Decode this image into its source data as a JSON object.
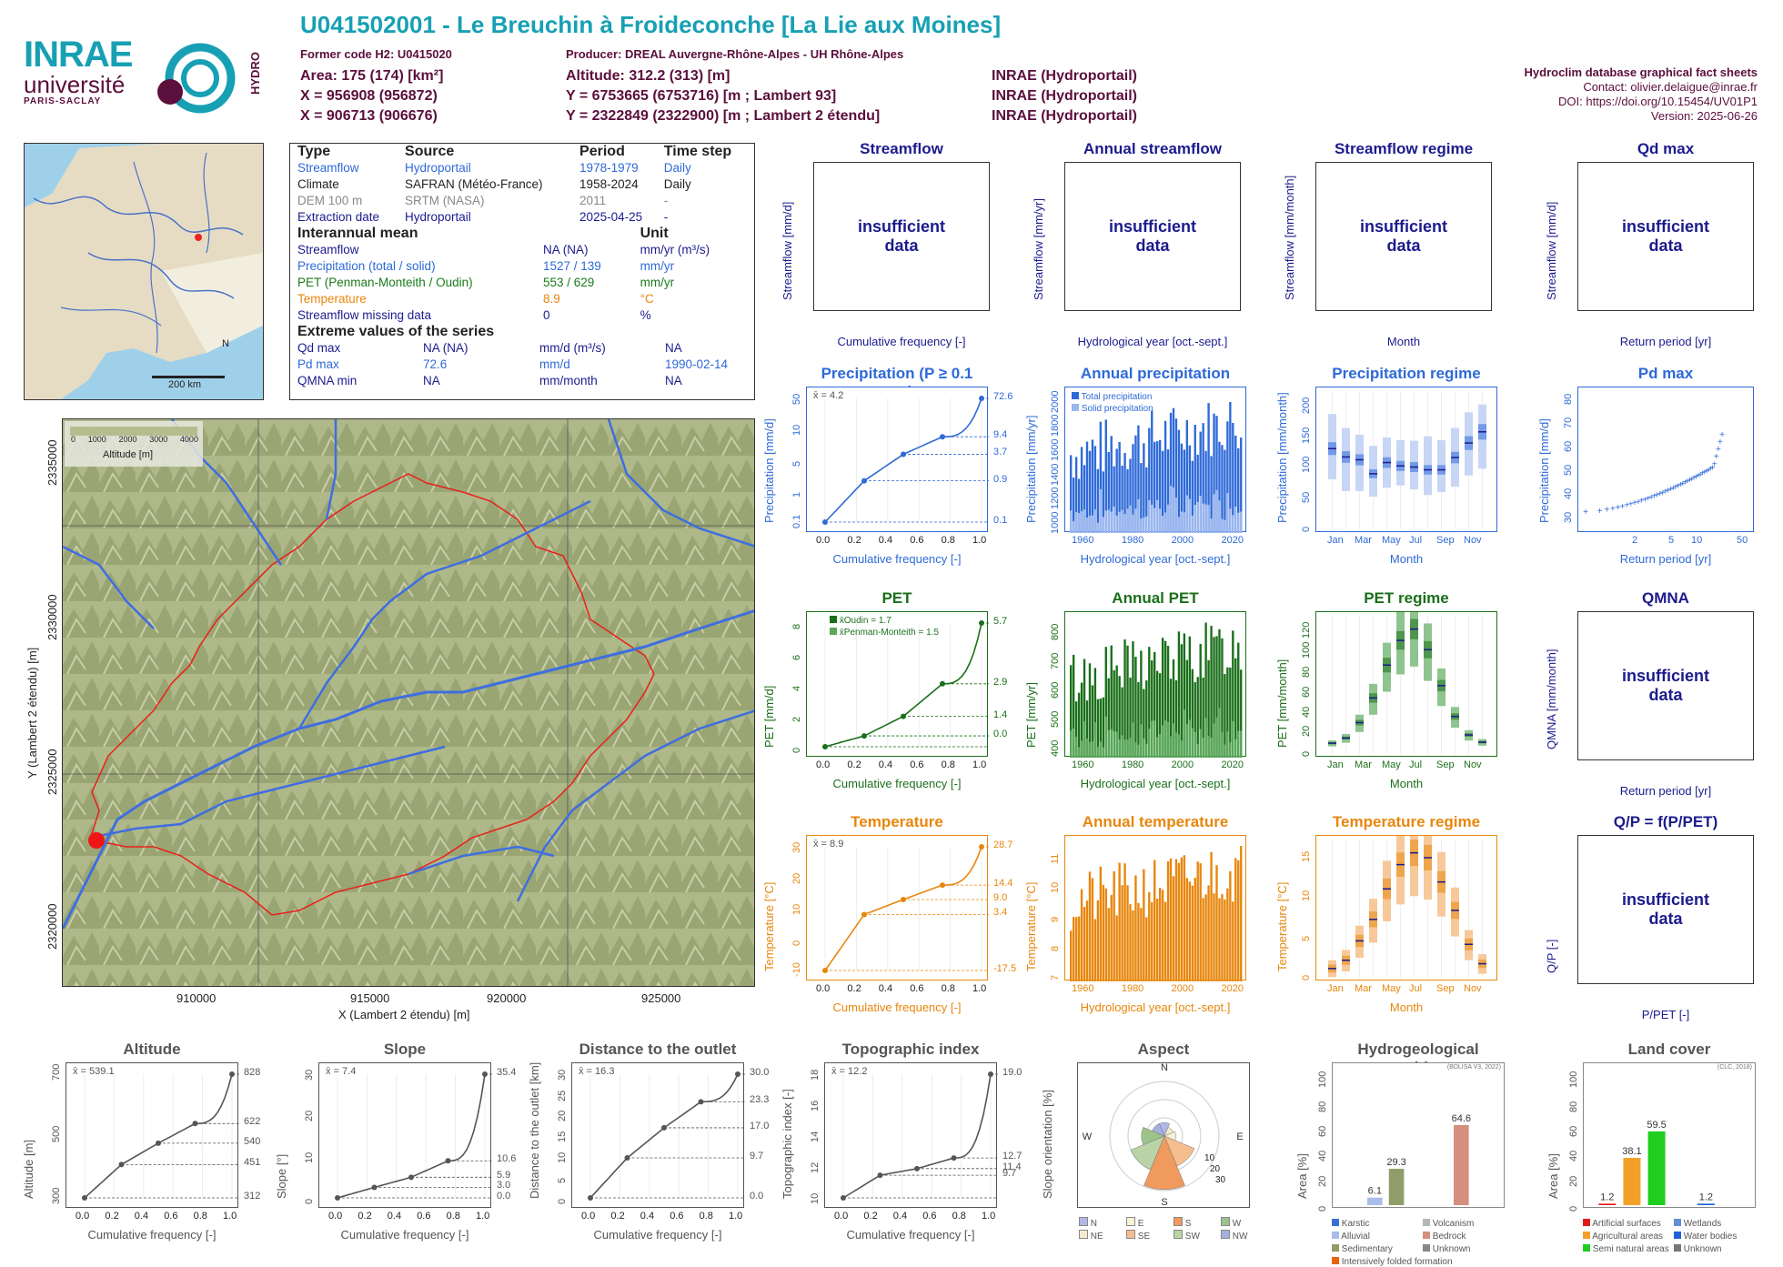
{
  "header": {
    "title": "U041502001 - Le Breuchin à Froideconche [La Lie aux Moines]",
    "former_code": "Former code H2: U0415020",
    "producer": "Producer: DREAL Auvergne-Rhône-Alpes - UH Rhône-Alpes",
    "col1": [
      "Area: 175 (174) [km²]",
      "X = 956908 (956872)",
      "X = 906713 (906676)"
    ],
    "col2": [
      "Altitude: 312.2 (313) [m]",
      "Y = 6753665 (6753716) [m ; Lambert 93]",
      "Y = 2322849 (2322900) [m ; Lambert 2 étendu]"
    ],
    "col3": [
      "INRAE (Hydroportail)",
      "INRAE (Hydroportail)",
      "INRAE (Hydroportail)"
    ],
    "right": [
      "Hydroclim database graphical fact sheets",
      "Contact: olivier.delaigue@inrae.fr",
      "DOI: https://doi.org/10.15454/UV01P1",
      "Version: 2025-06-26"
    ],
    "logos": {
      "inrae": "INRAE",
      "univ": "université",
      "paris": "PARIS-SACLAY",
      "hydro": "HYDRO"
    }
  },
  "locator_map": {
    "scale": "200 km",
    "north": "N"
  },
  "info_table": {
    "headers": [
      "Type",
      "Source",
      "Period",
      "Time step"
    ],
    "rows": [
      [
        "Streamflow",
        "Hydroportail",
        "1978-1979",
        "Daily"
      ],
      [
        "Climate",
        "SAFRAN (Météo-France)",
        "1958-2024",
        "Daily"
      ],
      [
        "DEM 100 m",
        "SRTM (NASA)",
        "2011",
        "-"
      ],
      [
        "Extraction date",
        "Hydroportail",
        "2025-04-25",
        "-"
      ]
    ],
    "interannual_title": "Interannual mean",
    "unit_title": "Unit",
    "interannual": [
      [
        "Streamflow",
        "NA (NA)",
        "mm/yr (m³/s)"
      ],
      [
        "Precipitation (total / solid)",
        "1527 / 139",
        "mm/yr"
      ],
      [
        "PET (Penman-Monteith / Oudin)",
        "553 / 629",
        "mm/yr"
      ],
      [
        "Temperature",
        "8.9",
        "°C"
      ],
      [
        "Streamflow missing data",
        "0",
        "%"
      ]
    ],
    "extreme_title": "Extreme values of the series",
    "extreme": [
      [
        "Qd max",
        "NA (NA)",
        "mm/d (m³/s)",
        "NA"
      ],
      [
        "Pd max",
        "72.6",
        "mm/d",
        "1990-02-14"
      ],
      [
        "QMNA min",
        "NA",
        "mm/month",
        "NA"
      ]
    ]
  },
  "main_map": {
    "legend_ticks": [
      "0",
      "1000",
      "2000",
      "3000",
      "4000"
    ],
    "legend_title": "Altitude [m]",
    "x_ticks": [
      "910000",
      "915000",
      "920000",
      "925000"
    ],
    "y_ticks": [
      "2335000",
      "2330000",
      "2325000",
      "2320000"
    ],
    "x_label": "X (Lambert 2 étendu) [m]",
    "y_label": "Y (Lambert 2 étendu) [m]"
  },
  "insufficient": "insufficient data",
  "panels": {
    "streamflow": {
      "title": "Streamflow",
      "ylabel": "Streamflow [mm/d]",
      "xlabel": "Cumulative frequency [-]"
    },
    "annual_streamflow": {
      "title": "Annual streamflow",
      "ylabel": "Streamflow [mm/yr]",
      "xlabel": "Hydrological year [oct.-sept.]"
    },
    "streamflow_regime": {
      "title": "Streamflow regime",
      "ylabel": "Streamflow [mm/month]",
      "xlabel": "Month"
    },
    "qd_max": {
      "title": "Qd max",
      "ylabel": "Streamflow [mm/d]",
      "xlabel": "Return period [yr]"
    },
    "precip": {
      "title": "Precipitation (P ≥ 0.1 mm)",
      "ylabel": "Precipitation [mm/d]",
      "xlabel": "Cumulative frequency [-]",
      "mean": "x̄ = 4.2"
    },
    "annual_precip": {
      "title": "Annual precipitation",
      "ylabel": "Precipitation [mm/yr]",
      "xlabel": "Hydrological year [oct.-sept.]",
      "legend": [
        "Total precipitation",
        "Solid precipitation"
      ]
    },
    "precip_regime": {
      "title": "Precipitation regime",
      "ylabel": "Precipitation [mm/month]",
      "xlabel": "Month"
    },
    "pd_max": {
      "title": "Pd max",
      "ylabel": "Precipitation [mm/d]",
      "xlabel": "Return period [yr]"
    },
    "pet": {
      "title": "PET",
      "ylabel": "PET [mm/d]",
      "xlabel": "Cumulative frequency [-]",
      "legend": [
        "x̄Oudin = 1.7",
        "x̄Penman-Monteith = 1.5"
      ]
    },
    "annual_pet": {
      "title": "Annual PET",
      "ylabel": "PET [mm/yr]",
      "xlabel": "Hydrological year [oct.-sept.]"
    },
    "pet_regime": {
      "title": "PET regime",
      "ylabel": "PET [mm/month]",
      "xlabel": "Month"
    },
    "qmna": {
      "title": "QMNA",
      "ylabel": "QMNA [mm/month]",
      "xlabel": "Return period [yr]"
    },
    "temp": {
      "title": "Temperature",
      "ylabel": "Temperature [°C]",
      "xlabel": "Cumulative frequency [-]",
      "mean": "x̄ = 8.9"
    },
    "annual_temp": {
      "title": "Annual temperature",
      "ylabel": "Temperature [°C]",
      "xlabel": "Hydrological year [oct.-sept.]"
    },
    "temp_regime": {
      "title": "Temperature regime",
      "ylabel": "Temperature [°C]",
      "xlabel": "Month"
    },
    "qp": {
      "title": "Q/P = f(P/PET)",
      "ylabel": "Q/P [-]",
      "xlabel": "P/PET [-]"
    },
    "altitude": {
      "title": "Altitude",
      "ylabel": "Altitude [m]",
      "xlabel": "Cumulative frequency [-]",
      "mean": "x̄ = 539.1"
    },
    "slope": {
      "title": "Slope",
      "ylabel": "Slope [°]",
      "xlabel": "Cumulative frequency [-]",
      "mean": "x̄ = 7.4"
    },
    "distance": {
      "title": "Distance to the outlet",
      "ylabel": "Distance to the outlet [km]",
      "xlabel": "Cumulative frequency [-]",
      "mean": "x̄ = 16.3"
    },
    "topo": {
      "title": "Topographic index",
      "ylabel": "Topographic index [-]",
      "xlabel": "Cumulative frequency [-]",
      "mean": "x̄ = 12.2"
    },
    "aspect": {
      "title": "Aspect",
      "ylabel": "Slope orientation [%]"
    },
    "hydrogeo": {
      "title": "Hydrogeological entities",
      "ylabel": "Area [%]",
      "source": "(BDLISA V3, 2022)"
    },
    "landcover": {
      "title": "Land cover",
      "ylabel": "Area [%]",
      "source": "(CLC, 2018)"
    }
  },
  "month_labels": [
    "Jan",
    "Mar",
    "May",
    "Jul",
    "Sep",
    "Nov"
  ],
  "year_labels": [
    "1960",
    "1980",
    "2000",
    "2020"
  ],
  "chart_data": [
    {
      "type": "line",
      "id": "precip_cdf",
      "x": [
        0,
        0.25,
        0.5,
        0.75,
        1
      ],
      "y": [
        0.1,
        0.9,
        3.7,
        9.4,
        72.6
      ],
      "right_labels": [
        "72.6",
        "9.4",
        "3.7",
        "0.9",
        "0.1"
      ],
      "yticks": [
        "0.1",
        "1",
        "5",
        "10",
        "50"
      ],
      "xticks": [
        "0.0",
        "0.2",
        "0.4",
        "0.6",
        "0.8",
        "1.0"
      ],
      "color": "#2e6ad8"
    },
    {
      "type": "bar",
      "id": "annual_precip",
      "years": [
        1960,
        2022
      ],
      "total_range": [
        1000,
        2200
      ],
      "yticks": [
        "1000",
        "1200",
        "1400",
        "1600",
        "1800",
        "2000"
      ],
      "color": "#2e6ad8",
      "color2": "#9bb7ef"
    },
    {
      "type": "boxplot",
      "id": "precip_regime",
      "months": 12,
      "median": [
        138,
        123,
        118,
        93,
        113,
        107,
        105,
        100,
        100,
        122,
        148,
        168
      ],
      "low": [
        83,
        62,
        62,
        52,
        68,
        72,
        65,
        55,
        60,
        70,
        90,
        102
      ],
      "high": [
        200,
        175,
        163,
        143,
        158,
        153,
        152,
        160,
        153,
        175,
        203,
        217
      ],
      "yticks": [
        "0",
        "50",
        "100",
        "150",
        "200"
      ],
      "color": "#2e6ad8"
    },
    {
      "type": "scatter",
      "id": "pd_max",
      "xticks": [
        "2",
        "5",
        "10",
        "50"
      ],
      "yticks": [
        "30",
        "40",
        "50",
        "60",
        "70",
        "80"
      ],
      "ymax": 72.6,
      "color": "#2e6ad8"
    },
    {
      "type": "line",
      "id": "pet_cdf",
      "x": [
        0,
        0.25,
        0.5,
        0.75,
        1
      ],
      "y": [
        0.0,
        0.5,
        1.4,
        2.9,
        5.7
      ],
      "right_labels": [
        "5.7",
        "2.9",
        "1.4",
        "0.0"
      ],
      "yticks": [
        "0",
        "2",
        "4",
        "6",
        "8"
      ],
      "color": "#1a6f1a"
    },
    {
      "type": "bar",
      "id": "annual_pet",
      "yticks": [
        "400",
        "500",
        "600",
        "700",
        "800"
      ],
      "color": "#1a6f1a",
      "color2": "#5aa85a"
    },
    {
      "type": "boxplot",
      "id": "pet_regime",
      "median": [
        7,
        12,
        27,
        51,
        83,
        107,
        118,
        98,
        63,
        33,
        15,
        8
      ],
      "yticks": [
        "0",
        "20",
        "40",
        "60",
        "80",
        "100",
        "120"
      ],
      "color": "#1a6f1a"
    },
    {
      "type": "line",
      "id": "temp_cdf",
      "x": [
        0,
        0.25,
        0.5,
        0.75,
        1
      ],
      "y": [
        -17.5,
        3.4,
        9.0,
        14.4,
        28.7
      ],
      "right_labels": [
        "28.7",
        "14.4",
        "9.0",
        "3.4",
        "-17.5"
      ],
      "yticks": [
        "-10",
        "0",
        "10",
        "20",
        "30"
      ],
      "color": "#e8860c"
    },
    {
      "type": "bar",
      "id": "annual_temp",
      "yticks": [
        "7",
        "8",
        "9",
        "10",
        "11"
      ],
      "color": "#e8860c"
    },
    {
      "type": "boxplot",
      "id": "temp_regime",
      "median": [
        0.8,
        2.0,
        4.8,
        7.9,
        12.3,
        15.8,
        17.5,
        16.8,
        13.3,
        9.2,
        4.3,
        1.5
      ],
      "yticks": [
        "0",
        "5",
        "10",
        "15"
      ],
      "color": "#e8860c"
    },
    {
      "type": "line",
      "id": "altitude_cdf",
      "x": [
        0,
        0.25,
        0.5,
        0.75,
        1
      ],
      "y": [
        312,
        451,
        540,
        622,
        828
      ],
      "right_labels": [
        "828",
        "622",
        "540",
        "451",
        "312"
      ],
      "yticks": [
        "300",
        "500",
        "700"
      ],
      "color": "#555"
    },
    {
      "type": "line",
      "id": "slope_cdf",
      "x": [
        0,
        0.25,
        0.5,
        0.75,
        1
      ],
      "y": [
        0,
        3.0,
        5.9,
        10.6,
        35.4
      ],
      "right_labels": [
        "35.4",
        "10.6",
        "5.9",
        "3.0",
        "0.0"
      ],
      "yticks": [
        "0",
        "10",
        "20",
        "30"
      ],
      "color": "#555"
    },
    {
      "type": "line",
      "id": "distance_cdf",
      "x": [
        0,
        0.25,
        0.5,
        0.75,
        1
      ],
      "y": [
        0,
        9.7,
        17.0,
        23.3,
        30.0
      ],
      "right_labels": [
        "30.0",
        "23.3",
        "17.0",
        "9.7",
        "0.0"
      ],
      "yticks": [
        "0",
        "5",
        "10",
        "15",
        "20",
        "25",
        "30"
      ],
      "color": "#555"
    },
    {
      "type": "line",
      "id": "topo_cdf",
      "x": [
        0,
        0.25,
        0.5,
        0.75,
        1
      ],
      "y": [
        9.7,
        11.4,
        11.9,
        12.7,
        19.0
      ],
      "right_labels": [
        "19.0",
        "12.7",
        "11.4",
        "9.7"
      ],
      "yticks": [
        "10",
        "12",
        "14",
        "16",
        "18"
      ],
      "color": "#555"
    },
    {
      "type": "pie",
      "id": "aspect",
      "categories": [
        "N",
        "NE",
        "E",
        "SE",
        "S",
        "SW",
        "W",
        "NW"
      ],
      "values": [
        7,
        5,
        6,
        17,
        28,
        19,
        12,
        7
      ],
      "rings": [
        "10",
        "20",
        "30"
      ],
      "colors": [
        "#b0b7e8",
        "#f5ead0",
        "#f7f2d8",
        "#f6bd8f",
        "#f09a5e",
        "#b9d3a6",
        "#9cc38a",
        "#a5b0dc"
      ],
      "legend": [
        "N",
        "NE",
        "E",
        "SE",
        "S",
        "SW",
        "W",
        "NW"
      ]
    },
    {
      "type": "bar",
      "id": "hydrogeo",
      "categories": [
        "Karstic",
        "Alluvial",
        "Sedimentary",
        "Intensively folded formation",
        "Volcanism",
        "Bedrock",
        "Unknown"
      ],
      "values": [
        0,
        6.1,
        29.3,
        0,
        0,
        64.6,
        0
      ],
      "labels": [
        "6.1",
        "29.3",
        "64.6"
      ],
      "yticks": [
        "0",
        "20",
        "40",
        "60",
        "80",
        "100"
      ],
      "colors": [
        "#3b6fd8",
        "#a9bde8",
        "#8f9e68",
        "#e8650c",
        "#b6b6b6",
        "#d48f7f",
        "#888888"
      ]
    },
    {
      "type": "bar",
      "id": "landcover",
      "categories": [
        "Artificial surfaces",
        "Agricultural areas",
        "Semi natural areas",
        "Wetlands",
        "Water bodies",
        "Unknown"
      ],
      "values": [
        1.2,
        38.1,
        59.5,
        0,
        1.2,
        0
      ],
      "labels": [
        "1.2",
        "38.1",
        "59.5",
        "1.2"
      ],
      "yticks": [
        "0",
        "20",
        "40",
        "60",
        "80",
        "100"
      ],
      "colors": [
        "#e21a1a",
        "#f2a02a",
        "#1fce1f",
        "#5f8fd5",
        "#2060d8",
        "#777777"
      ]
    }
  ]
}
